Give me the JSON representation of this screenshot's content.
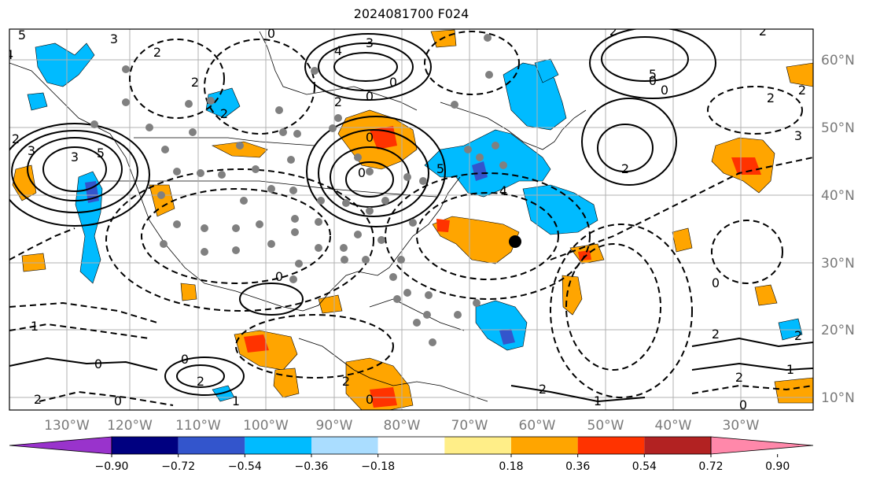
{
  "title": "2024081700 F024",
  "map": {
    "lon_labels": [
      "130°W",
      "120°W",
      "110°W",
      "100°W",
      "90°W",
      "80°W",
      "70°W",
      "60°W",
      "50°W",
      "40°W",
      "30°W"
    ],
    "lat_labels": [
      "60°N",
      "50°N",
      "40°N",
      "30°N",
      "20°N",
      "10°N"
    ],
    "contour_labels": [
      "5",
      "3",
      "2",
      "2",
      "4",
      "3",
      "2",
      "0",
      "2",
      "3",
      "5",
      "2",
      "3",
      "4",
      "5",
      "2",
      "2",
      "0",
      "2",
      "3",
      "0",
      "0",
      "0",
      "0",
      "1",
      "2",
      "2",
      "0",
      "0",
      "2",
      "1",
      "2",
      "0",
      "1",
      "0",
      "2",
      "1",
      "0",
      "2",
      "2",
      "0",
      "2",
      "5",
      "4",
      "0",
      "0",
      "2"
    ],
    "grid": true,
    "colors": {
      "contour": "#000000",
      "grid": "#b0b0b0",
      "station_dot": "#808080"
    }
  },
  "colorbar": {
    "tick_labels": [
      "−0.90",
      "−0.72",
      "−0.54",
      "−0.36",
      "−0.18",
      "0.18",
      "0.36",
      "0.54",
      "0.72",
      "0.90"
    ],
    "colors": [
      "#9933cc",
      "#000080",
      "#3355cc",
      "#00bbff",
      "#aaddff",
      "#ffffff",
      "#ffee88",
      "#ffa500",
      "#ff3300",
      "#b22222",
      "#ff88aa"
    ]
  }
}
